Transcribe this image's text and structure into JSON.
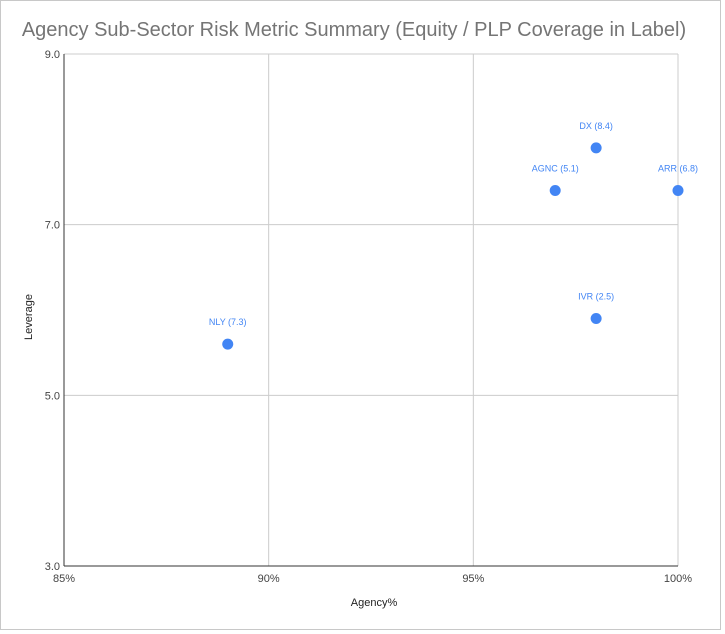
{
  "chart_data": {
    "type": "scatter",
    "title": "Agency Sub-Sector Risk Metric Summary (Equity / PLP Coverage in Label)",
    "xlabel": "Agency%",
    "ylabel": "Leverage",
    "xlim": [
      85,
      100
    ],
    "ylim": [
      3.0,
      9.0
    ],
    "x_ticks": [
      85,
      90,
      95,
      100
    ],
    "x_tick_labels": [
      "85%",
      "90%",
      "95%",
      "100%"
    ],
    "y_ticks": [
      3.0,
      5.0,
      7.0,
      9.0
    ],
    "y_tick_labels": [
      "3.0",
      "5.0",
      "7.0",
      "9.0"
    ],
    "grid": true,
    "legend": "none",
    "points": [
      {
        "label": "NLY (7.3)",
        "x": 89.0,
        "y": 5.6
      },
      {
        "label": "AGNC (5.1)",
        "x": 97.0,
        "y": 7.4
      },
      {
        "label": "DX (8.4)",
        "x": 98.0,
        "y": 7.9
      },
      {
        "label": "ARR (6.8)",
        "x": 100.0,
        "y": 7.4
      },
      {
        "label": "IVR (2.5)",
        "x": 98.0,
        "y": 5.9
      }
    ],
    "colors": {
      "marker": "#4285f4",
      "grid": "#cccccc",
      "axis": "#333333",
      "title": "#757575"
    }
  }
}
